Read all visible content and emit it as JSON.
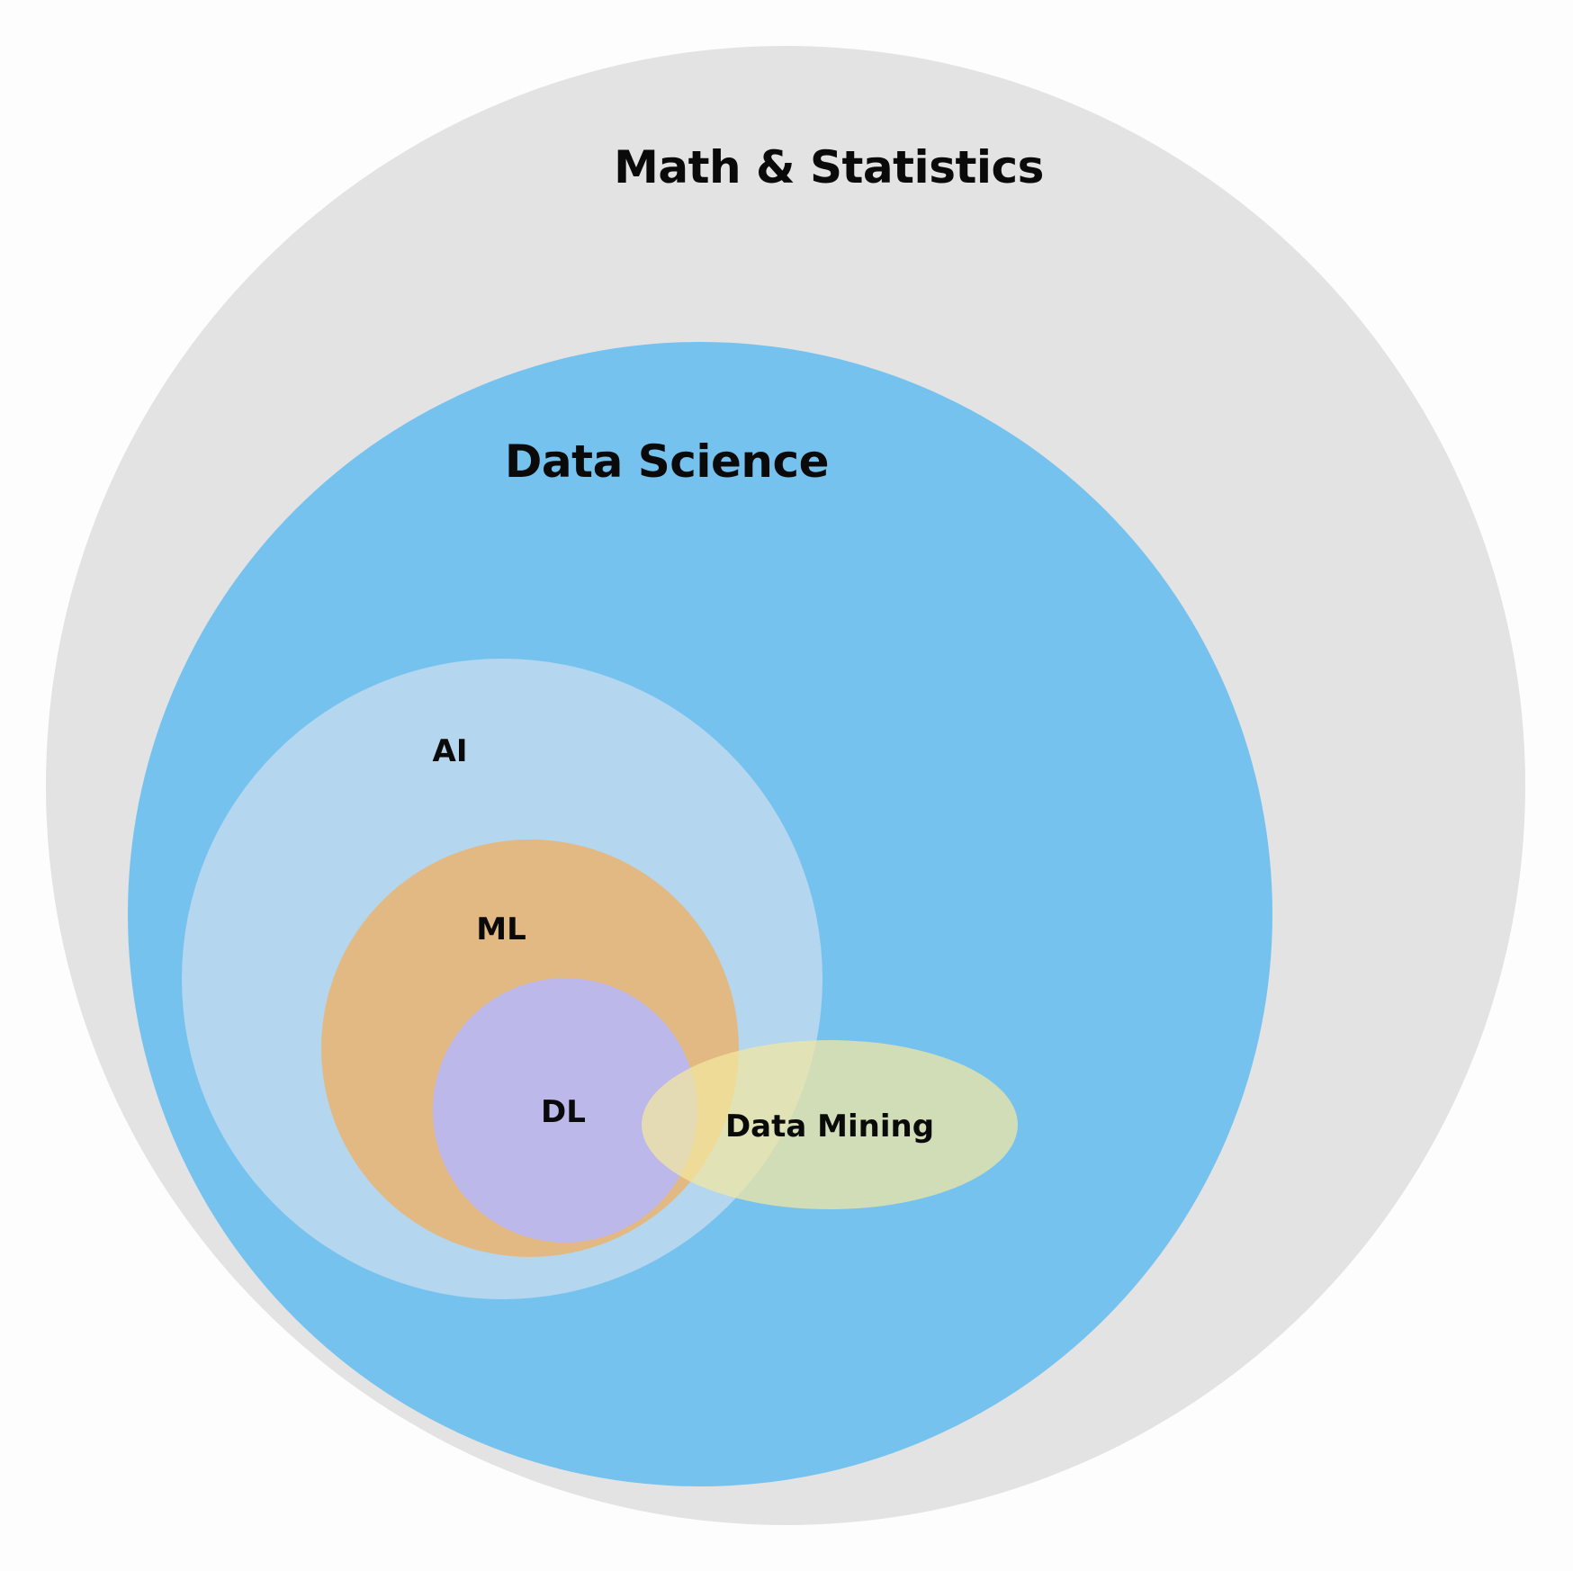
{
  "diagram": {
    "regions": [
      {
        "id": "math",
        "label": "Math & Statistics",
        "color": "#e3e3e4"
      },
      {
        "id": "ds",
        "label": "Data Science",
        "color": "#76c2ef"
      },
      {
        "id": "ai",
        "label": "AI",
        "color": "#b4d6ef"
      },
      {
        "id": "ml",
        "label": "ML",
        "color": "#e2b983"
      },
      {
        "id": "dl",
        "label": "DL",
        "color": "#bdb8ea"
      },
      {
        "id": "dm",
        "label": "Data Mining",
        "color": "#f2e7a0"
      }
    ]
  }
}
